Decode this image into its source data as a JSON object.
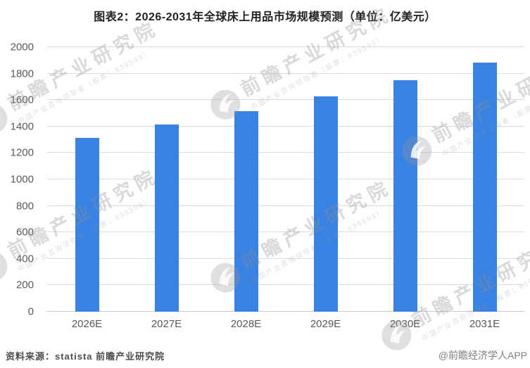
{
  "title": "图表2：2026-2031年全球床上用品市场规模预测（单位：亿美元）",
  "chart_data": {
    "type": "bar",
    "title": "图表2：2026-2031年全球床上用品市场规模预测（单位：亿美元）",
    "categories": [
      "2026E",
      "2027E",
      "2028E",
      "2029E",
      "2030E",
      "2031E"
    ],
    "values": [
      1312,
      1413,
      1514,
      1628,
      1748,
      1882
    ],
    "xlabel": "",
    "ylabel": "",
    "ylim": [
      0,
      2000
    ],
    "yticks": [
      0,
      200,
      400,
      600,
      800,
      1000,
      1200,
      1400,
      1600,
      1800,
      2000
    ],
    "grid": true,
    "legend": false,
    "bar_color": "#3882e4",
    "gridline_color": "#dcdcdc",
    "axis_label_color": "#595959"
  },
  "footer": {
    "source": "资料来源：statista  前瞻产业研究院",
    "credit": "@前瞻经济学人APP"
  },
  "watermark": {
    "logo_icon": "qianzhan-logo-icon",
    "text": "前瞻产业研究院",
    "subtext": "中国产业咨询领导者（股票：839599）"
  }
}
